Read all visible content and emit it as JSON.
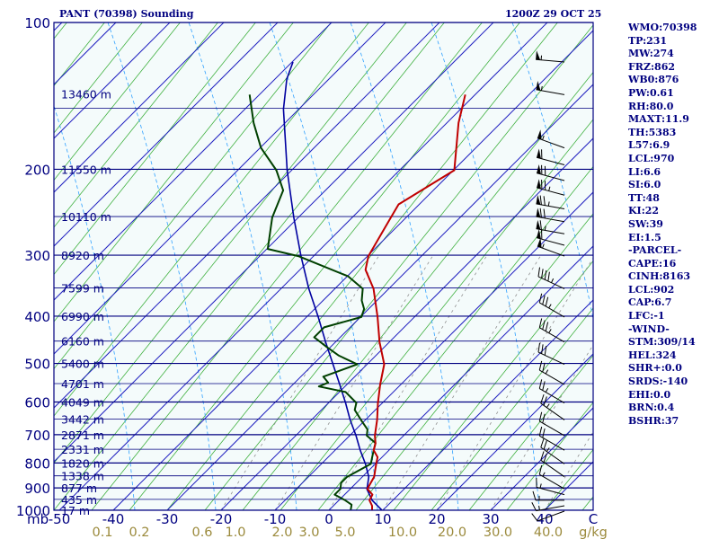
{
  "header": {
    "left": "PANT (70398) Sounding",
    "right": "1200Z 29 OCT 25"
  },
  "colors": {
    "background": "#ffffff",
    "plot_background": "#f4fbfb",
    "isobar": "#000080",
    "isotherm": "#2020c0",
    "dry_adiabat": "#3fb03f",
    "moist_adiabat": "#2ea0ff",
    "mixing_ratio": "#909090",
    "temperature": "#c00000",
    "dewpoint": "#004000",
    "parcel": "#0000a0",
    "text": "#000080",
    "mixing_ratio_labels": "#9b8a3c",
    "wind": "#000000"
  },
  "side_indices": [
    "WMO:70398",
    "TP:231",
    "MW:274",
    "FRZ:862",
    "WB0:876",
    "PW:0.61",
    "RH:80.0",
    "MAXT:11.9",
    "TH:5383",
    "L57:6.9",
    "LCL:970",
    "LI:6.6",
    "SI:6.0",
    "TT:48",
    "KI:22",
    "SW:39",
    "EI:1.5",
    "-PARCEL-",
    "CAPE:16",
    "CINH:8163",
    "LCL:902",
    "CAP:6.7",
    "LFC:-1",
    "-WIND-",
    "STM:309/14",
    "HEL:324",
    "SHR+:0.0",
    "SRDS:-140",
    "EHI:0.0",
    "BRN:0.4",
    "BSHR:37"
  ],
  "chart_data": {
    "type": "line",
    "subtype": "skew-T log-P sounding",
    "title": "PANT (70398) Sounding",
    "valid_time": "1200Z 29 OCT 25",
    "xlabel": "",
    "ylabel": "mb",
    "ylim": [
      1000,
      100
    ],
    "xlim": [
      -50,
      50
    ],
    "y_scale": "log",
    "skew": "isotherms slanted 45 degrees to the right",
    "pressure_ticks": [
      "100",
      "200",
      "300",
      "400",
      "500",
      "600",
      "700",
      "800",
      "900",
      "1000"
    ],
    "temperature_ticks": [
      "-50",
      "-40",
      "-30",
      "-20",
      "-10",
      "0",
      "10",
      "20",
      "30",
      "40"
    ],
    "extra_x_label": "C",
    "height_labels": [
      {
        "p": 140,
        "label": "13460 m"
      },
      {
        "p": 200,
        "label": "11550 m"
      },
      {
        "p": 250,
        "label": "10110 m"
      },
      {
        "p": 300,
        "label": "8920 m"
      },
      {
        "p": 350,
        "label": "7599 m"
      },
      {
        "p": 400,
        "label": "6990 m"
      },
      {
        "p": 450,
        "label": "6160 m"
      },
      {
        "p": 500,
        "label": "5400 m"
      },
      {
        "p": 550,
        "label": "4701 m"
      },
      {
        "p": 600,
        "label": "4049 m"
      },
      {
        "p": 650,
        "label": "3442 m"
      },
      {
        "p": 700,
        "label": "2871 m"
      },
      {
        "p": 750,
        "label": "2331 m"
      },
      {
        "p": 800,
        "label": "1820 m"
      },
      {
        "p": 850,
        "label": "1338 m"
      },
      {
        "p": 900,
        "label": "877 m"
      },
      {
        "p": 950,
        "label": "435 m"
      },
      {
        "p": 1000,
        "label": "17 m"
      }
    ],
    "mixing_ratio_unit": "g/kg",
    "mixing_ratio_labels": [
      "0.1",
      "0.2",
      "0.6",
      "1.0",
      "2.0",
      "3.0",
      "5.0",
      "10.0",
      "20.0",
      "30.0",
      "40.0"
    ],
    "temperature": [
      [
        1000,
        8
      ],
      [
        975,
        7
      ],
      [
        950,
        5.5
      ],
      [
        925,
        5
      ],
      [
        900,
        3
      ],
      [
        875,
        2.5
      ],
      [
        850,
        2
      ],
      [
        825,
        1
      ],
      [
        800,
        0
      ],
      [
        775,
        -1
      ],
      [
        750,
        -3
      ],
      [
        725,
        -4
      ],
      [
        700,
        -5.5
      ],
      [
        650,
        -8
      ],
      [
        600,
        -11
      ],
      [
        550,
        -14
      ],
      [
        500,
        -17
      ],
      [
        450,
        -22
      ],
      [
        400,
        -27
      ],
      [
        350,
        -33
      ],
      [
        320,
        -38
      ],
      [
        300,
        -40
      ],
      [
        250,
        -43
      ],
      [
        235,
        -44
      ],
      [
        200,
        -40
      ],
      [
        160,
        -48
      ],
      [
        140,
        -52
      ]
    ],
    "dewpoint": [
      [
        1000,
        4
      ],
      [
        970,
        3
      ],
      [
        950,
        1
      ],
      [
        925,
        -2
      ],
      [
        900,
        -2
      ],
      [
        875,
        -3
      ],
      [
        850,
        -3
      ],
      [
        825,
        -2
      ],
      [
        800,
        -1
      ],
      [
        775,
        -2
      ],
      [
        750,
        -3
      ],
      [
        725,
        -4
      ],
      [
        700,
        -7
      ],
      [
        680,
        -8
      ],
      [
        650,
        -11
      ],
      [
        620,
        -14
      ],
      [
        600,
        -15
      ],
      [
        570,
        -19
      ],
      [
        555,
        -25
      ],
      [
        545,
        -24
      ],
      [
        530,
        -26
      ],
      [
        500,
        -22
      ],
      [
        480,
        -27
      ],
      [
        460,
        -31
      ],
      [
        440,
        -35
      ],
      [
        420,
        -35
      ],
      [
        400,
        -30
      ],
      [
        385,
        -31
      ],
      [
        370,
        -33
      ],
      [
        350,
        -35
      ],
      [
        330,
        -40
      ],
      [
        300,
        -53
      ],
      [
        290,
        -60
      ],
      [
        250,
        -65
      ],
      [
        220,
        -68
      ],
      [
        200,
        -73
      ],
      [
        180,
        -80
      ],
      [
        160,
        -86
      ],
      [
        140,
        -92
      ]
    ],
    "parcel": [
      [
        1000,
        10
      ],
      [
        950,
        6
      ],
      [
        902,
        3
      ],
      [
        850,
        1
      ],
      [
        800,
        -2
      ],
      [
        750,
        -5.5
      ],
      [
        700,
        -9
      ],
      [
        650,
        -13
      ],
      [
        600,
        -17
      ],
      [
        550,
        -21.5
      ],
      [
        500,
        -26.5
      ],
      [
        450,
        -32
      ],
      [
        400,
        -38
      ],
      [
        350,
        -45
      ],
      [
        300,
        -52.5
      ],
      [
        250,
        -61
      ],
      [
        200,
        -71
      ],
      [
        150,
        -83
      ],
      [
        130,
        -88
      ],
      [
        120,
        -90
      ]
    ],
    "winds": [
      {
        "p": 1000,
        "dir": 250,
        "spd": 10
      },
      {
        "p": 975,
        "dir": 260,
        "spd": 15
      },
      {
        "p": 950,
        "dir": 270,
        "spd": 15
      },
      {
        "p": 925,
        "dir": 285,
        "spd": 15
      },
      {
        "p": 900,
        "dir": 300,
        "spd": 15
      },
      {
        "p": 850,
        "dir": 305,
        "spd": 20
      },
      {
        "p": 800,
        "dir": 305,
        "spd": 25
      },
      {
        "p": 750,
        "dir": 300,
        "spd": 20
      },
      {
        "p": 700,
        "dir": 300,
        "spd": 20
      },
      {
        "p": 650,
        "dir": 305,
        "spd": 25
      },
      {
        "p": 600,
        "dir": 300,
        "spd": 25
      },
      {
        "p": 550,
        "dir": 300,
        "spd": 25
      },
      {
        "p": 500,
        "dir": 295,
        "spd": 30
      },
      {
        "p": 450,
        "dir": 300,
        "spd": 35
      },
      {
        "p": 400,
        "dir": 300,
        "spd": 35
      },
      {
        "p": 350,
        "dir": 295,
        "spd": 45
      },
      {
        "p": 300,
        "dir": 290,
        "spd": 55
      },
      {
        "p": 285,
        "dir": 285,
        "spd": 60
      },
      {
        "p": 270,
        "dir": 280,
        "spd": 65
      },
      {
        "p": 255,
        "dir": 280,
        "spd": 70
      },
      {
        "p": 240,
        "dir": 280,
        "spd": 75
      },
      {
        "p": 225,
        "dir": 285,
        "spd": 75
      },
      {
        "p": 210,
        "dir": 285,
        "spd": 70
      },
      {
        "p": 195,
        "dir": 285,
        "spd": 60
      },
      {
        "p": 180,
        "dir": 290,
        "spd": 55
      },
      {
        "p": 140,
        "dir": 280,
        "spd": 55
      },
      {
        "p": 120,
        "dir": 275,
        "spd": 55
      }
    ]
  }
}
